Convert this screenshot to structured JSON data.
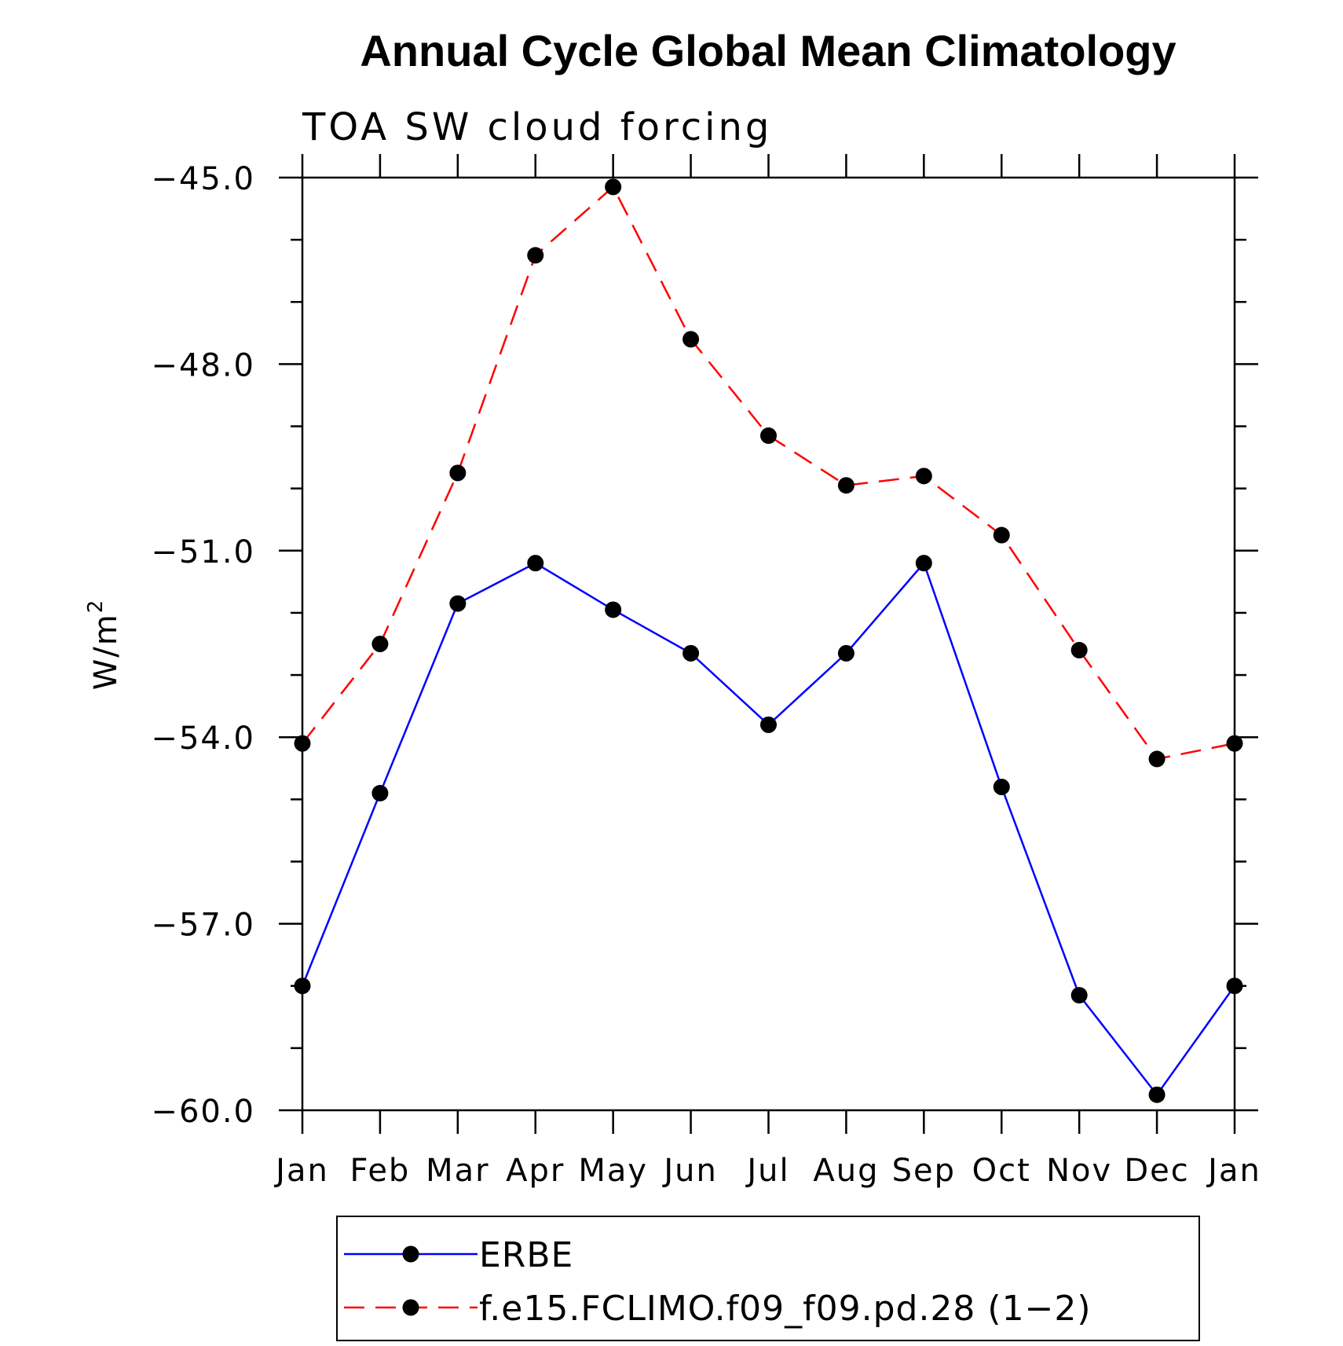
{
  "chart_data": {
    "type": "line",
    "title": "Annual Cycle Global Mean Climatology",
    "subtitle": "TOA SW cloud forcing",
    "xlabel": "",
    "ylabel": "W/m",
    "ylabel_sup": "2",
    "categories": [
      "Jan",
      "Feb",
      "Mar",
      "Apr",
      "May",
      "Jun",
      "Jul",
      "Aug",
      "Sep",
      "Oct",
      "Nov",
      "Dec",
      "Jan"
    ],
    "ylim": [
      -60.0,
      -45.0
    ],
    "yticks": [
      -45.0,
      -48.0,
      -51.0,
      -54.0,
      -57.0,
      -60.0
    ],
    "ytick_labels": [
      "−45.0",
      "−48.0",
      "−51.0",
      "−54.0",
      "−57.0",
      "−60.0"
    ],
    "grid": false,
    "legend_position": "bottom",
    "series": [
      {
        "name": "ERBE",
        "color": "#0000ff",
        "style": "solid",
        "marker": "filled-circle",
        "values": [
          -58.0,
          -54.9,
          -51.85,
          -51.2,
          -51.95,
          -52.65,
          -53.8,
          -52.65,
          -51.2,
          -54.8,
          -58.15,
          -59.75,
          -58.0
        ]
      },
      {
        "name": "f.e15.FCLIMO.f09_f09.pd.28 (1−2)",
        "color": "#ff0000",
        "style": "dashed",
        "marker": "filled-circle",
        "values": [
          -54.1,
          -52.5,
          -49.75,
          -46.25,
          -45.15,
          -47.6,
          -49.15,
          -49.95,
          -49.8,
          -50.75,
          -52.6,
          -54.35,
          -54.1
        ]
      }
    ]
  }
}
